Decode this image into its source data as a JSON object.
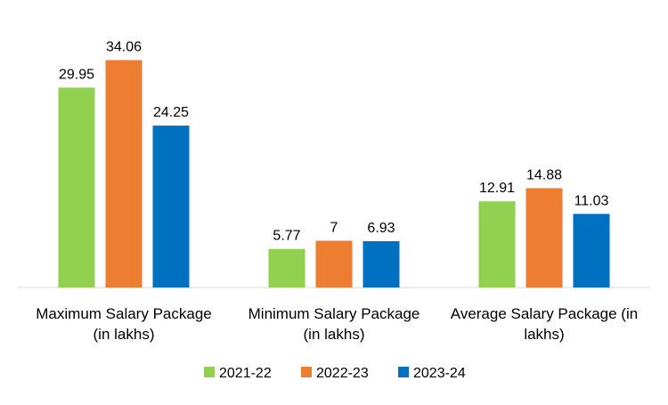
{
  "chart_data": {
    "type": "bar",
    "title": "",
    "xlabel": "",
    "ylabel": "",
    "ylim": [
      0,
      36
    ],
    "grid": false,
    "legend_position": "bottom",
    "categories": [
      [
        "Maximum Salary Package",
        "(in lakhs)"
      ],
      [
        "Minimum Salary Package",
        "(in lakhs)"
      ],
      [
        "Average Salary Package (in",
        "lakhs)"
      ]
    ],
    "series": [
      {
        "name": "2021-22",
        "color": "#92D050",
        "values": [
          29.95,
          5.77,
          12.91
        ],
        "labels": [
          "29.95",
          "5.77",
          "12.91"
        ]
      },
      {
        "name": "2022-23",
        "color": "#ED7D31",
        "values": [
          34.06,
          7,
          14.88
        ],
        "labels": [
          "34.06",
          "7",
          "14.88"
        ]
      },
      {
        "name": "2023-24",
        "color": "#0070C0",
        "values": [
          24.25,
          6.93,
          11.03
        ],
        "labels": [
          "24.25",
          "6.93",
          "11.03"
        ]
      }
    ]
  }
}
